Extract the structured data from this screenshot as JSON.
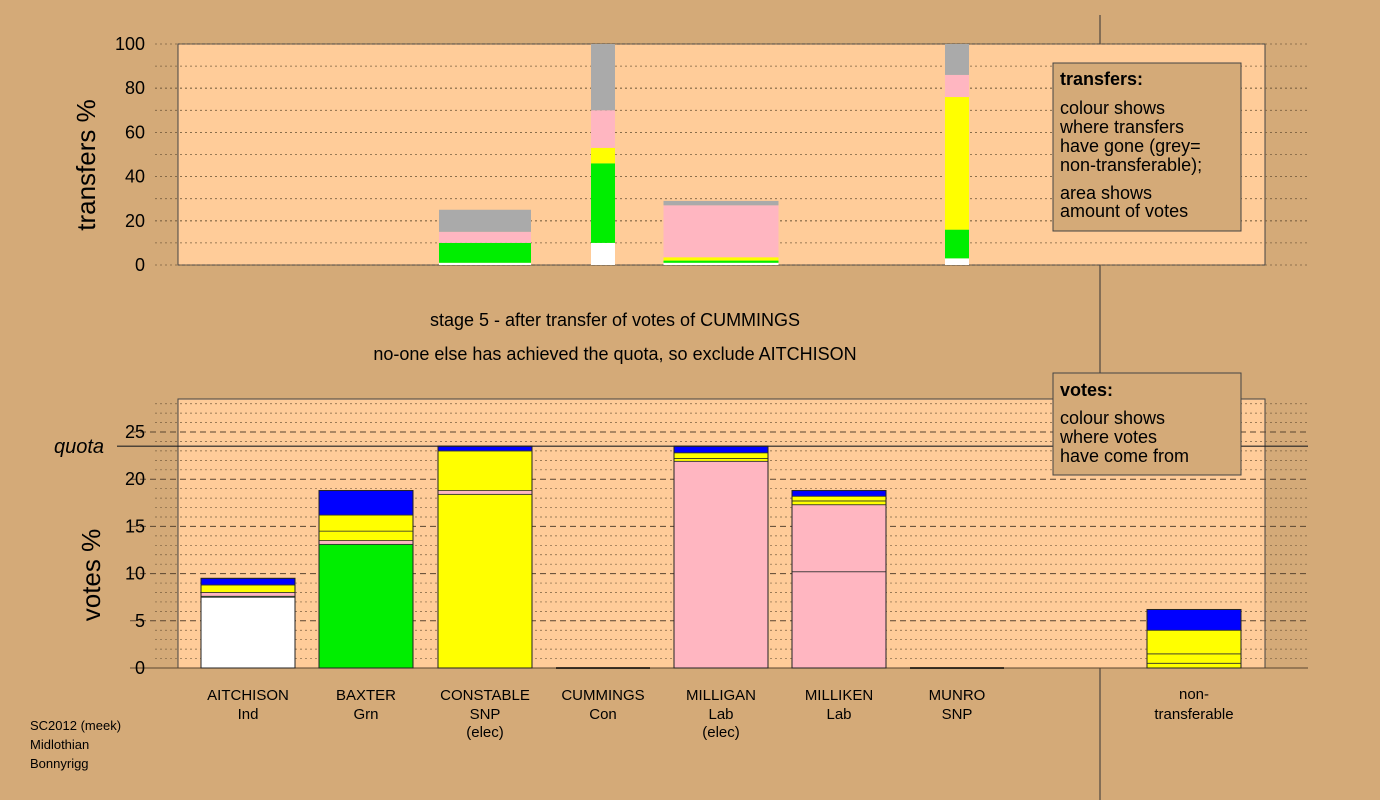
{
  "chart_data": [
    {
      "type": "bar",
      "stacked": true,
      "ylabel": "transfers %",
      "ylim": [
        0,
        100
      ],
      "yticks": [
        0,
        20,
        40,
        60,
        80,
        100
      ],
      "categories": [
        "AITCHISON",
        "BAXTER",
        "CONSTABLE",
        "CUMMINGS",
        "MILLIGAN",
        "MILLIKEN",
        "MUNRO",
        "non-transferable"
      ],
      "bars": [
        {
          "candidate": "CONSTABLE",
          "segments": [
            {
              "color": "#ffffff",
              "value": 1
            },
            {
              "color": "#00ee00",
              "value": 9
            },
            {
              "color": "#ffb6c1",
              "value": 5
            },
            {
              "color": "#aaaaaa",
              "value": 10
            }
          ]
        },
        {
          "candidate": "CUMMINGS",
          "segments": [
            {
              "color": "#ffffff",
              "value": 10
            },
            {
              "color": "#00ee00",
              "value": 36
            },
            {
              "color": "#ffff00",
              "value": 7
            },
            {
              "color": "#ffb6c1",
              "value": 17
            },
            {
              "color": "#aaaaaa",
              "value": 30
            }
          ]
        },
        {
          "candidate": "MILLIGAN",
          "segments": [
            {
              "color": "#ffffff",
              "value": 1
            },
            {
              "color": "#00ee00",
              "value": 1
            },
            {
              "color": "#ffff00",
              "value": 1.5
            },
            {
              "color": "#ffb6c1",
              "value": 23.5
            },
            {
              "color": "#aaaaaa",
              "value": 2
            }
          ]
        },
        {
          "candidate": "MUNRO",
          "segments": [
            {
              "color": "#ffffff",
              "value": 3
            },
            {
              "color": "#00ee00",
              "value": 13
            },
            {
              "color": "#ffff00",
              "value": 60
            },
            {
              "color": "#ffb6c1",
              "value": 10
            },
            {
              "color": "#aaaaaa",
              "value": 14
            }
          ]
        }
      ]
    },
    {
      "type": "bar",
      "stacked": true,
      "ylabel": "votes %",
      "ylim": [
        0,
        28.5
      ],
      "yticks": [
        0,
        5,
        10,
        15,
        20,
        25
      ],
      "quota": 23.5,
      "quota_label": "quota",
      "categories": [
        "AITCHISON",
        "BAXTER",
        "CONSTABLE",
        "CUMMINGS",
        "MILLIGAN",
        "MILLIKEN",
        "MUNRO",
        "non-transferable"
      ],
      "bars": [
        {
          "candidate": "AITCHISON",
          "segments": [
            {
              "color": "#ffffff",
              "value": 7.5
            },
            {
              "color": "#00ee00",
              "value": 0.1
            },
            {
              "color": "#ffb6c1",
              "value": 0.4
            },
            {
              "color": "#ffff00",
              "value": 0.8
            },
            {
              "color": "#0000ff",
              "value": 0.7
            }
          ]
        },
        {
          "candidate": "BAXTER",
          "segments": [
            {
              "color": "#00ee00",
              "value": 13.1
            },
            {
              "color": "#ffb6c1",
              "value": 0.4
            },
            {
              "color": "#ffff00",
              "value": 1.0
            },
            {
              "color": "#ffff00",
              "value": 1.7
            },
            {
              "color": "#0000ff",
              "value": 2.6
            }
          ]
        },
        {
          "candidate": "CONSTABLE",
          "segments": [
            {
              "color": "#ffff00",
              "value": 18.4
            },
            {
              "color": "#ffb6c1",
              "value": 0.4
            },
            {
              "color": "#ffff00",
              "value": 4.2
            },
            {
              "color": "#0000ff",
              "value": 0.5
            }
          ]
        },
        {
          "candidate": "CUMMINGS",
          "segments": []
        },
        {
          "candidate": "MILLIGAN",
          "segments": [
            {
              "color": "#ffb6c1",
              "value": 21.9
            },
            {
              "color": "#ffff00",
              "value": 0.3
            },
            {
              "color": "#ffff00",
              "value": 0.6
            },
            {
              "color": "#0000ff",
              "value": 0.7
            }
          ]
        },
        {
          "candidate": "MILLIKEN",
          "segments": [
            {
              "color": "#ffb6c1",
              "value": 10.2
            },
            {
              "color": "#ffb6c1",
              "value": 7.1
            },
            {
              "color": "#ffff00",
              "value": 0.4
            },
            {
              "color": "#ffff00",
              "value": 0.5
            },
            {
              "color": "#0000ff",
              "value": 0.6
            }
          ]
        },
        {
          "candidate": "MUNRO",
          "segments": []
        },
        {
          "candidate": "non-transferable",
          "segments": [
            {
              "color": "#ffff00",
              "value": 0.5
            },
            {
              "color": "#ffff00",
              "value": 1.0
            },
            {
              "color": "#ffff00",
              "value": 2.5
            },
            {
              "color": "#0000ff",
              "value": 2.2
            }
          ]
        }
      ]
    }
  ],
  "candidates": [
    {
      "name": "AITCHISON",
      "party": "Ind",
      "note": ""
    },
    {
      "name": "BAXTER",
      "party": "Grn",
      "note": ""
    },
    {
      "name": "CONSTABLE",
      "party": "SNP",
      "note": "(elec)"
    },
    {
      "name": "CUMMINGS",
      "party": "Con",
      "note": ""
    },
    {
      "name": "MILLIGAN",
      "party": "Lab",
      "note": "(elec)"
    },
    {
      "name": "MILLIKEN",
      "party": "Lab",
      "note": ""
    },
    {
      "name": "MUNRO",
      "party": "SNP",
      "note": ""
    }
  ],
  "nontransferable_label": {
    "line1": "non-",
    "line2": "transferable"
  },
  "stage_message": {
    "line1": "stage 5 - after transfer of votes of CUMMINGS",
    "line2": "no-one else has achieved the quota, so exclude AITCHISON"
  },
  "transfers_key": {
    "title": "transfers:",
    "lines": [
      "colour shows",
      "where transfers",
      "have gone (grey=",
      "non-transferable);"
    ],
    "lines2": [
      "area shows",
      "amount of votes"
    ]
  },
  "votes_key": {
    "title": "votes:",
    "lines": [
      "colour shows",
      "where votes",
      "have come from"
    ]
  },
  "footer": [
    "SC2012 (meek)",
    "Midlothian",
    "Bonnyrigg"
  ],
  "colors": {
    "background": "#d4aa78",
    "plot_area": "#ffcc99",
    "independent": "#ffffff",
    "green": "#00ee00",
    "snp": "#ffff00",
    "labour": "#ffb6c1",
    "conservative": "#0000ff",
    "non_transferable": "#aaaaaa"
  }
}
